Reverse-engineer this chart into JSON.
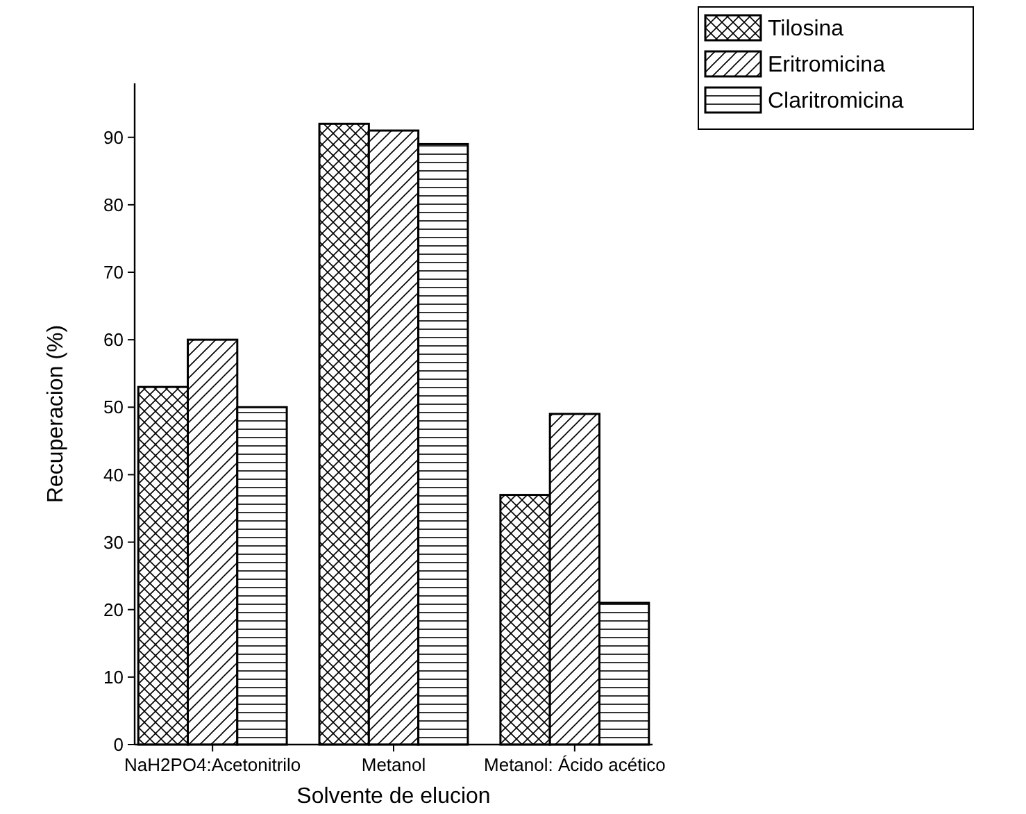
{
  "chart_data": {
    "type": "bar",
    "xlabel": "Solvente de elucion",
    "ylabel": "Recuperacion (%)",
    "categories": [
      "NaH2PO4:Acetonitrilo",
      "Metanol",
      "Metanol: Ácido acético"
    ],
    "series": [
      {
        "name": "Tilosina",
        "color": "#000000",
        "values": [
          53,
          92,
          37
        ]
      },
      {
        "name": "Eritromicina",
        "color": "#000000",
        "values": [
          60,
          91,
          49
        ]
      },
      {
        "name": "Claritromicina",
        "color": "#000000",
        "values": [
          50,
          89,
          21
        ]
      }
    ],
    "ylim": [
      0,
      98
    ],
    "yticks": [
      0,
      10,
      20,
      30,
      40,
      50,
      60,
      70,
      80,
      90
    ],
    "grid": false,
    "legend": "top right"
  }
}
